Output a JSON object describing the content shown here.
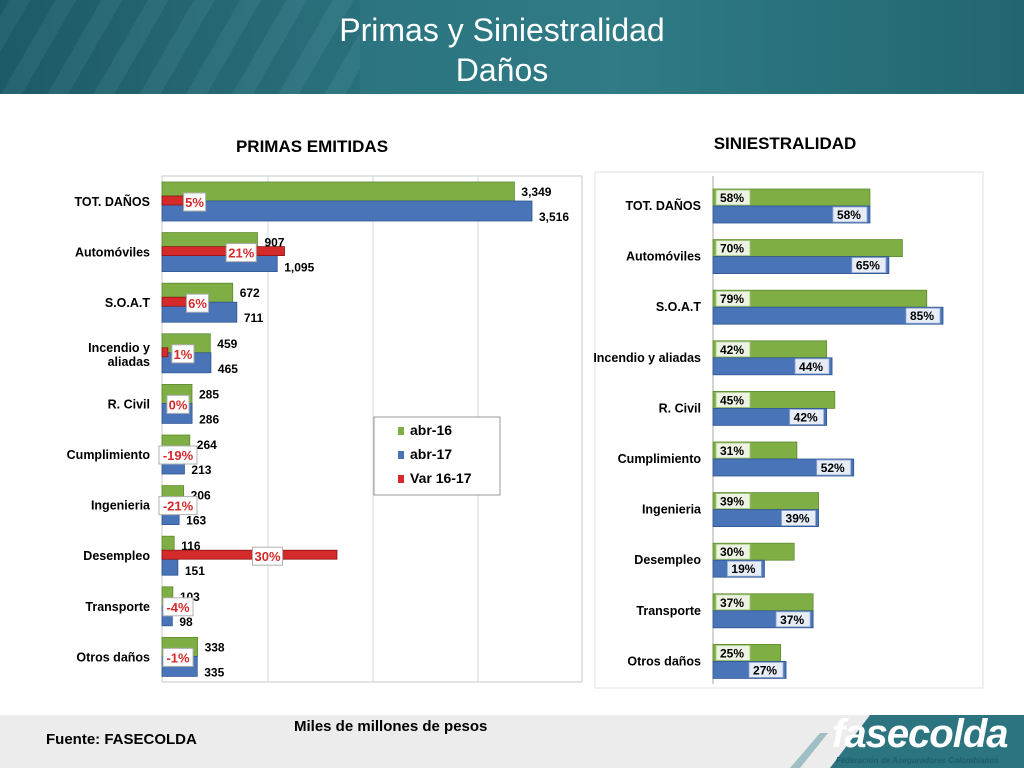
{
  "slide": {
    "title_line1": "Primas y Siniestralidad",
    "title_line2": "Daños",
    "source": "Fuente: FASECOLDA",
    "unit_note": "Miles de millones de pesos",
    "logo_text": "fasecolda",
    "logo_subtext": "Federación de Aseguradores Colombianos"
  },
  "colors": {
    "green": "#7fae45",
    "blue": "#4a74b8",
    "red": "#d42a2a",
    "header": "#2b7480"
  },
  "chart_data": [
    {
      "type": "bar",
      "orientation": "horizontal",
      "title": "PRIMAS EMITIDAS",
      "categories": [
        "TOT. DAÑOS",
        "Automóviles",
        "S.O.A.T",
        "Incendio y aliadas",
        "R. Civil",
        "Cumplimiento",
        "Ingenieria",
        "Desempleo",
        "Transporte",
        "Otros daños"
      ],
      "category_labels": [
        [
          "TOT. DAÑOS"
        ],
        [
          "Automóviles"
        ],
        [
          "S.O.A.T"
        ],
        [
          "Incendio y",
          "aliadas"
        ],
        [
          "R. Civil"
        ],
        [
          "Cumplimiento"
        ],
        [
          "Ingenieria"
        ],
        [
          "Desempleo"
        ],
        [
          "Transporte"
        ],
        [
          "Otros daños"
        ]
      ],
      "series": [
        {
          "name": "abr-16",
          "values": [
            3349,
            907,
            672,
            459,
            285,
            264,
            206,
            116,
            103,
            338
          ],
          "labels": [
            "3,349",
            "907",
            "672",
            "459",
            "285",
            "264",
            "206",
            "116",
            "103",
            "338"
          ]
        },
        {
          "name": "abr-17",
          "values": [
            3516,
            1095,
            711,
            465,
            286,
            213,
            163,
            151,
            98,
            335
          ],
          "labels": [
            "3,516",
            "1,095",
            "711",
            "465",
            "286",
            "213",
            "163",
            "151",
            "98",
            "335"
          ]
        },
        {
          "name": "Var 16-17",
          "values": [
            5,
            21,
            6,
            1,
            0,
            -19,
            -21,
            30,
            -4,
            -1
          ],
          "labels": [
            "5%",
            "21%",
            "6%",
            "1%",
            "0%",
            "-19%",
            "-21%",
            "30%",
            "-4%",
            "-1%"
          ]
        }
      ],
      "legend_position": "right-middle",
      "grid": true
    },
    {
      "type": "bar",
      "orientation": "horizontal",
      "title": "SINIESTRALIDAD",
      "categories": [
        "TOT. DAÑOS",
        "Automóviles",
        "S.O.A.T",
        "Incendio y aliadas",
        "R. Civil",
        "Cumplimiento",
        "Ingenieria",
        "Desempleo",
        "Transporte",
        "Otros daños"
      ],
      "series": [
        {
          "name": "abr-16",
          "values": [
            58,
            70,
            79,
            42,
            45,
            31,
            39,
            30,
            37,
            25
          ],
          "labels": [
            "58%",
            "70%",
            "79%",
            "42%",
            "45%",
            "31%",
            "39%",
            "30%",
            "37%",
            "25%"
          ]
        },
        {
          "name": "abr-17",
          "values": [
            58,
            65,
            85,
            44,
            42,
            52,
            39,
            19,
            37,
            27
          ],
          "labels": [
            "58%",
            "65%",
            "85%",
            "44%",
            "42%",
            "52%",
            "39%",
            "19%",
            "37%",
            "27%"
          ]
        }
      ]
    }
  ]
}
